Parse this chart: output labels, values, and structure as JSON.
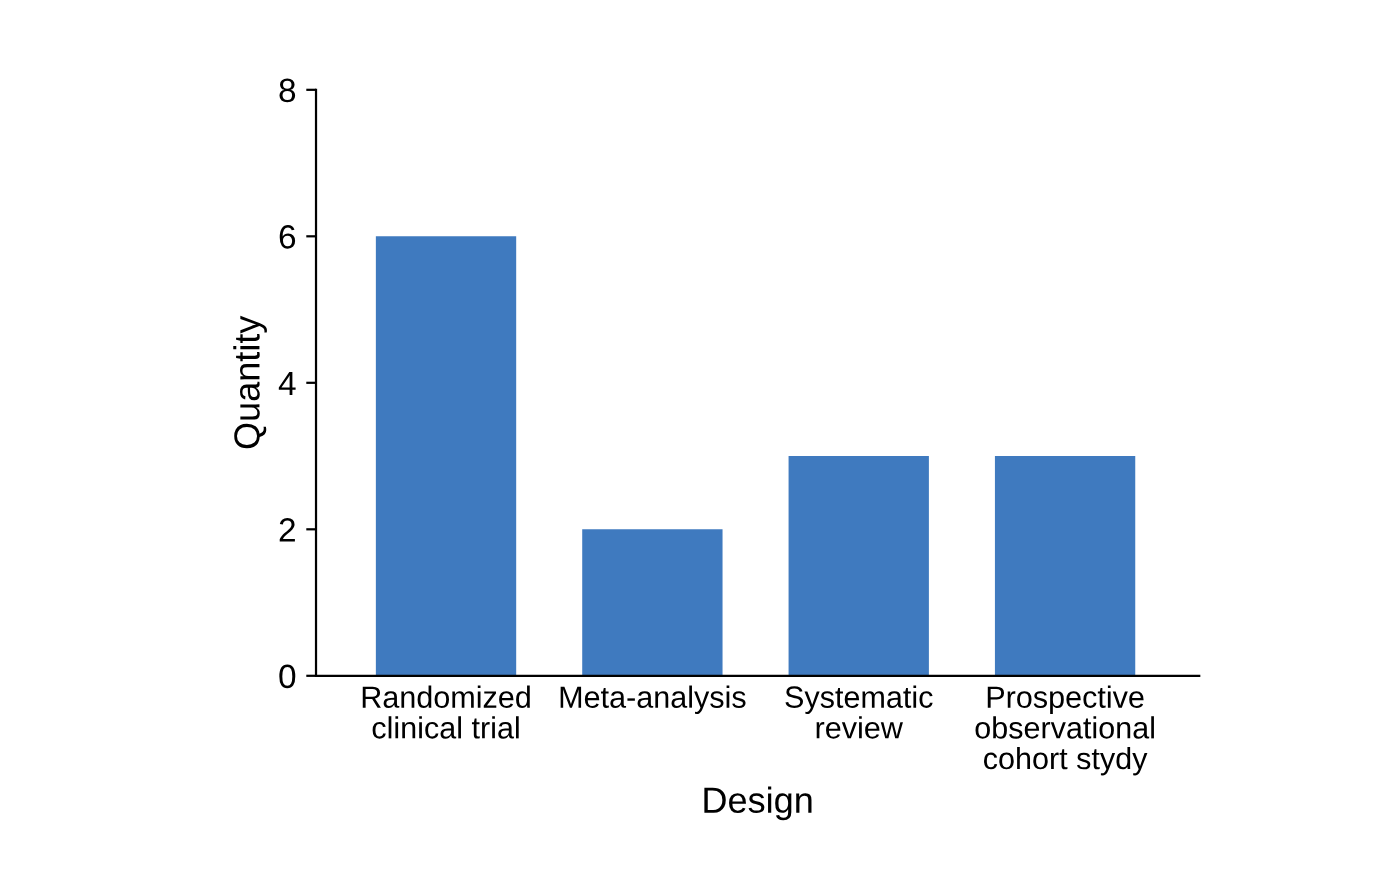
{
  "chart_data": {
    "type": "bar",
    "xlabel": "Design",
    "ylabel": "Quantity",
    "categories": [
      "Randomized\nclinical trial",
      "Meta-analysis",
      "Systematic\nreview",
      "Prospective\nobservational\ncohort stydy"
    ],
    "values": [
      6,
      2,
      3,
      3
    ],
    "color": "#3f7abf",
    "ylim": [
      0,
      8
    ],
    "yticks": [
      0,
      2,
      4,
      6,
      8
    ],
    "grid": false,
    "legend": false
  }
}
